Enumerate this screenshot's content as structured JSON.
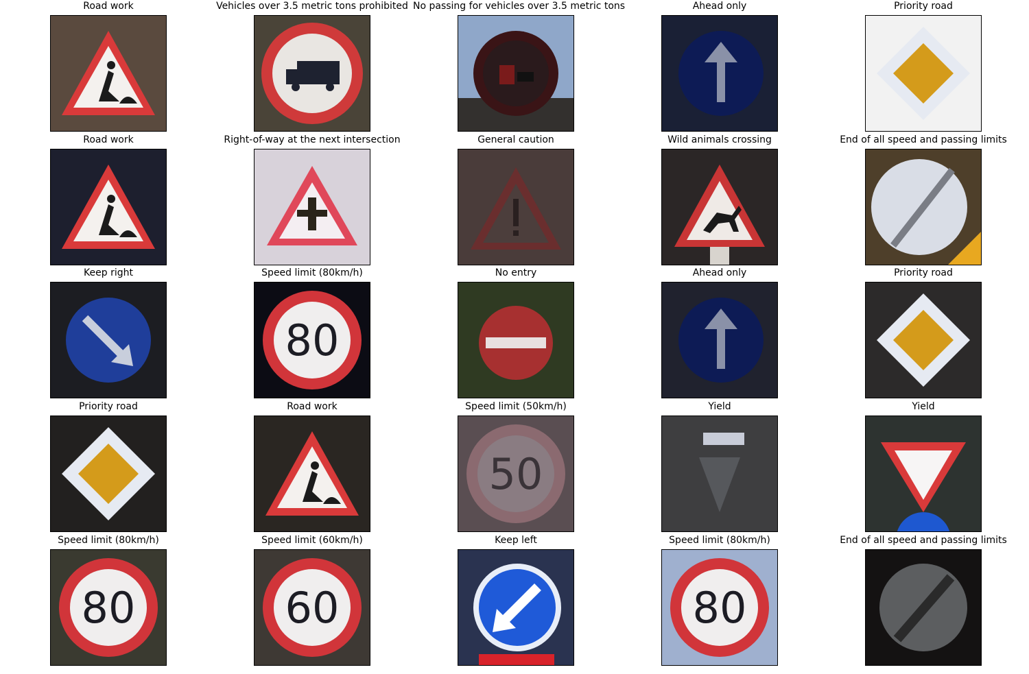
{
  "figure": {
    "rows": [
      [
        {
          "title": "Road work",
          "sign": "roadwork",
          "bg": "#5a4a3e"
        },
        {
          "title": "Vehicles over 3.5 metric tons prohibited",
          "sign": "truck",
          "bg": "#4a4438"
        },
        {
          "title": "No passing for vehicles over 3.5 metric tons",
          "sign": "nopass_truck",
          "bg": "#8fa7c9"
        },
        {
          "title": "Ahead only",
          "sign": "ahead",
          "bg": "#1a2035"
        },
        {
          "title": "Priority road",
          "sign": "priority_bright",
          "bg": "#f2f2f2"
        }
      ],
      [
        {
          "title": "Road work",
          "sign": "roadwork",
          "bg": "#1d1f2e"
        },
        {
          "title": "Right-of-way at the next intersection",
          "sign": "rightofway",
          "bg": "#d8d2da"
        },
        {
          "title": "General caution",
          "sign": "caution",
          "bg": "#4a3c3a"
        },
        {
          "title": "Wild animals crossing",
          "sign": "animals",
          "bg": "#2b2626"
        },
        {
          "title": "End of all speed and passing limits",
          "sign": "endlimits_light",
          "bg": "#4e3f2a"
        }
      ],
      [
        {
          "title": "Keep right",
          "sign": "keepright",
          "bg": "#1c1d22"
        },
        {
          "title": "Speed limit (80km/h)",
          "sign": "speed",
          "text": "80",
          "bg": "#0c0c14"
        },
        {
          "title": "No entry",
          "sign": "noentry",
          "bg": "#2f3a22"
        },
        {
          "title": "Ahead only",
          "sign": "ahead",
          "bg": "#20222e"
        },
        {
          "title": "Priority road",
          "sign": "priority",
          "bg": "#2c2a2a"
        }
      ],
      [
        {
          "title": "Priority road",
          "sign": "priority",
          "bg": "#22201f"
        },
        {
          "title": "Road work",
          "sign": "roadwork",
          "bg": "#2a2622"
        },
        {
          "title": "Speed limit (50km/h)",
          "sign": "speed_faded",
          "text": "50",
          "bg": "#5a4e52"
        },
        {
          "title": "Yield",
          "sign": "yield_dark",
          "bg": "#3e3e40"
        },
        {
          "title": "Yield",
          "sign": "yield",
          "bg": "#2d3330"
        }
      ],
      [
        {
          "title": "Speed limit (80km/h)",
          "sign": "speed",
          "text": "80",
          "bg": "#3a3a30"
        },
        {
          "title": "Speed limit (60km/h)",
          "sign": "speed",
          "text": "60",
          "bg": "#3e3934"
        },
        {
          "title": "Keep left",
          "sign": "keepleft",
          "bg": "#2a3350"
        },
        {
          "title": "Speed limit (80km/h)",
          "sign": "speed",
          "text": "80",
          "bg": "#9fb0cf"
        },
        {
          "title": "End of all speed and passing limits",
          "sign": "endlimits_dark",
          "bg": "#141212"
        }
      ]
    ]
  }
}
